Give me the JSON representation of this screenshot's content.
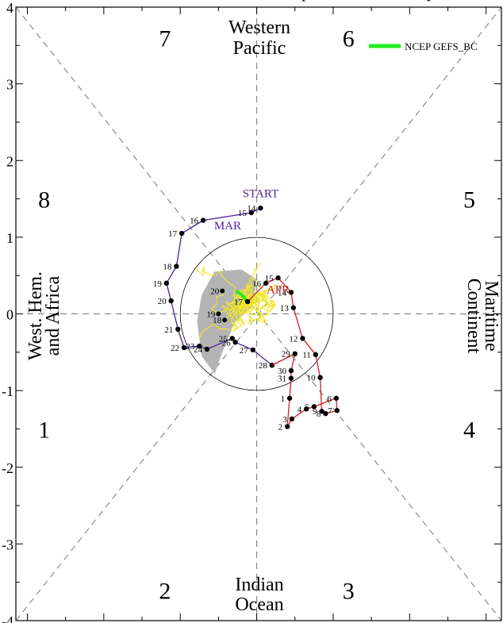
{
  "chart_data": {
    "type": "line",
    "title": "",
    "title_visible_fragment": "p",
    "title_visible_fragment2": "y",
    "xlim": [
      -3.15,
      3.2
    ],
    "ylim": [
      -4,
      4
    ],
    "y_ticks": [
      {
        "v": 4,
        "label": "4"
      },
      {
        "v": 3,
        "label": "3"
      },
      {
        "v": 2,
        "label": "2"
      },
      {
        "v": 1,
        "label": "1"
      },
      {
        "v": 0,
        "label": "0"
      },
      {
        "v": -1,
        "label": "-1"
      },
      {
        "v": -2,
        "label": "-2"
      },
      {
        "v": -3,
        "label": "-3"
      },
      {
        "v": -4,
        "label": "-4"
      }
    ],
    "phase_numbers": [
      {
        "label": "7",
        "x": -1.2,
        "y": 3.6
      },
      {
        "label": "6",
        "x": 1.2,
        "y": 3.6
      },
      {
        "label": "8",
        "x": -2.78,
        "y": 1.5
      },
      {
        "label": "5",
        "x": 2.78,
        "y": 1.5
      },
      {
        "label": "1",
        "x": -2.78,
        "y": -1.5
      },
      {
        "label": "4",
        "x": 2.78,
        "y": -1.5
      },
      {
        "label": "2",
        "x": -1.2,
        "y": -3.6
      },
      {
        "label": "3",
        "x": 1.2,
        "y": -3.6
      }
    ],
    "region_labels": {
      "top": [
        "Western",
        "Pacific"
      ],
      "bottom": [
        "Indian",
        "Ocean"
      ],
      "left": [
        "West. Hem.",
        "and Africa"
      ],
      "right": [
        "Maritime",
        "Continent"
      ]
    },
    "legend": {
      "label": "NCEP GEFS_BC",
      "color": "#22ee22",
      "position": "top-right"
    },
    "annotations": [
      {
        "text": "START",
        "x": 0.05,
        "y": 1.52,
        "color": "#4b1fa0"
      },
      {
        "text": "MAR",
        "x": -0.38,
        "y": 1.1,
        "color": "#4b1fa0"
      },
      {
        "text": "APR",
        "x": 0.28,
        "y": 0.27,
        "color": "#cc2222"
      }
    ],
    "amplitude_circle_radius": 1,
    "series": [
      {
        "name": "",
        "color": "#4b1fa0",
        "points": [
          {
            "d": "14",
            "x": 0.05,
            "y": 1.38
          },
          {
            "d": "15",
            "x": -0.07,
            "y": 1.32
          },
          {
            "d": "16",
            "x": -0.7,
            "y": 1.22
          },
          {
            "d": "17",
            "x": -0.98,
            "y": 1.05
          },
          {
            "d": "18",
            "x": -1.05,
            "y": 0.62
          },
          {
            "d": "19",
            "x": -1.18,
            "y": 0.4
          },
          {
            "d": "20",
            "x": -1.12,
            "y": 0.17
          },
          {
            "d": "21",
            "x": -1.03,
            "y": -0.2
          },
          {
            "d": "22",
            "x": -0.95,
            "y": -0.44
          },
          {
            "d": "23",
            "x": -0.75,
            "y": -0.42
          },
          {
            "d": "24",
            "x": -0.65,
            "y": -0.46
          },
          {
            "d": "25",
            "x": -0.32,
            "y": -0.32
          },
          {
            "d": "26",
            "x": -0.28,
            "y": -0.37
          },
          {
            "d": "27",
            "x": -0.05,
            "y": -0.47
          },
          {
            "d": "28",
            "x": 0.2,
            "y": -0.67
          }
        ]
      },
      {
        "name": "",
        "color": "#cc2222",
        "points": [
          {
            "d": "29",
            "x": 0.5,
            "y": -0.52
          },
          {
            "d": "30",
            "x": 0.45,
            "y": -0.74
          },
          {
            "d": "31",
            "x": 0.45,
            "y": -0.84
          },
          {
            "d": "1",
            "x": 0.43,
            "y": -1.1
          },
          {
            "d": "2",
            "x": 0.4,
            "y": -1.47
          },
          {
            "d": "3",
            "x": 0.46,
            "y": -1.37
          },
          {
            "d": "4",
            "x": 0.65,
            "y": -1.24
          },
          {
            "d": "5",
            "x": 0.75,
            "y": -1.21
          },
          {
            "d": "6",
            "x": 1.04,
            "y": -1.1
          },
          {
            "d": "7",
            "x": 1.05,
            "y": -1.26
          },
          {
            "d": "8",
            "x": 0.9,
            "y": -1.3
          },
          {
            "d": "9",
            "x": 0.85,
            "y": -1.27
          },
          {
            "d": "10",
            "x": 0.83,
            "y": -0.83
          },
          {
            "d": "11",
            "x": 0.77,
            "y": -0.53
          },
          {
            "d": "12",
            "x": 0.6,
            "y": -0.32
          },
          {
            "d": "13",
            "x": 0.48,
            "y": 0.08
          },
          {
            "d": "14",
            "x": 0.45,
            "y": 0.28
          },
          {
            "d": "15",
            "x": 0.28,
            "y": 0.47
          },
          {
            "d": "16",
            "x": 0.12,
            "y": 0.4
          },
          {
            "d": "17",
            "x": -0.12,
            "y": 0.16
          }
        ]
      }
    ],
    "forecast_mean_points": [
      {
        "d": "20",
        "x": -0.45,
        "y": 0.3
      },
      {
        "d": "19",
        "x": -0.5,
        "y": 0.0
      },
      {
        "d": "18",
        "x": -0.42,
        "y": -0.08
      }
    ]
  }
}
